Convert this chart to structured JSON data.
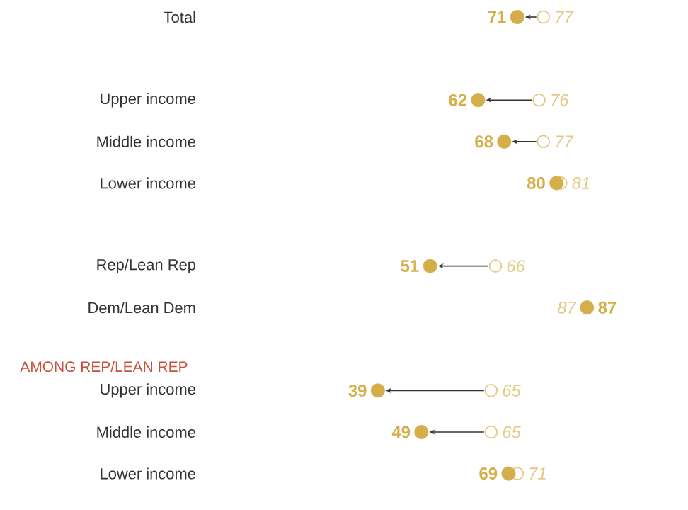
{
  "chart_data": {
    "type": "scatter",
    "orientation": "horizontal",
    "marker": "circle",
    "tick_labels": "y",
    "categories": [
      "Total",
      null,
      "Upper income",
      "Middle income",
      "Lower income",
      null,
      "Rep/Lean Rep",
      "Dem/Lean Dem",
      null,
      "Upper income",
      "Middle income",
      "Lower income"
    ],
    "series": [
      {
        "color": "#d4ae48",
        "values": [
          71,
          null,
          62,
          68,
          80,
          null,
          51,
          87,
          null,
          39,
          49,
          69
        ],
        "value_labels": [
          "71",
          null,
          "62",
          "68",
          "80",
          null,
          "51",
          "87",
          null,
          "39",
          "49",
          "69"
        ]
      },
      {
        "color": "#e2c983",
        "values": [
          77,
          null,
          76,
          77,
          81,
          null,
          66,
          null,
          null,
          65,
          65,
          71
        ],
        "value_labels": [
          "77",
          null,
          "76",
          "77",
          "81",
          null,
          "66",
          "87",
          null,
          "65",
          "65",
          "71"
        ]
      }
    ],
    "annotations": [
      "AMONG REP/LEAN REP"
    ]
  }
}
